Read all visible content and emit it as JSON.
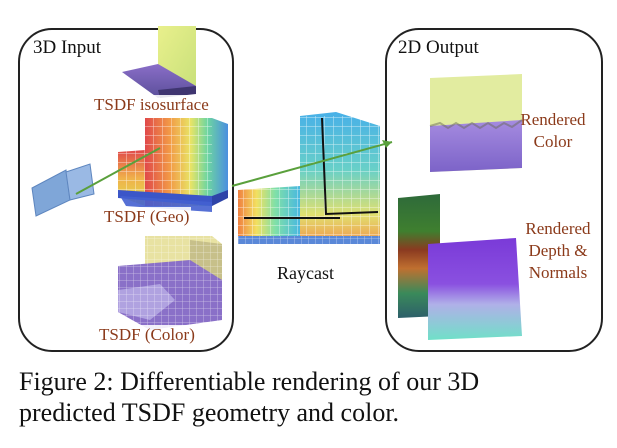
{
  "panels": {
    "input": {
      "title": "3D Input",
      "labels": {
        "isosurface": "TSDF isosurface",
        "geo": "TSDF (Geo)",
        "color": "TSDF (Color)"
      }
    },
    "output": {
      "title": "2D Output",
      "labels": {
        "rendered_color_1": "Rendered",
        "rendered_color_2": "Color",
        "depth_1": "Rendered",
        "depth_2": "Depth &",
        "depth_3": "Normals"
      }
    }
  },
  "raycast_label": "Raycast",
  "caption": {
    "line1": "Figure 2:  Differentiable rendering of our 3D",
    "line2": "predicted TSDF geometry and color."
  },
  "colors": {
    "arrow": "#5aa03c",
    "label_text": "#8b3a1a",
    "panel_border": "#222222",
    "camera": "#7fa6d8"
  },
  "icons": {
    "camera": "camera-icon"
  }
}
